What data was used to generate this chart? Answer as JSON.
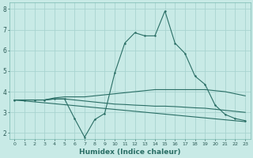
{
  "xlabel": "Humidex (Indice chaleur)",
  "background_color": "#c8eae6",
  "grid_color": "#a8d4d0",
  "line_color": "#2a6e65",
  "xlim": [
    -0.5,
    23.5
  ],
  "ylim": [
    1.7,
    8.3
  ],
  "yticks": [
    2,
    3,
    4,
    5,
    6,
    7,
    8
  ],
  "xticks": [
    0,
    1,
    2,
    3,
    4,
    5,
    6,
    7,
    8,
    9,
    10,
    11,
    12,
    13,
    14,
    15,
    16,
    17,
    18,
    19,
    20,
    21,
    22,
    23
  ],
  "lines": [
    {
      "x": [
        0,
        1,
        2,
        3,
        4,
        5,
        6,
        7,
        8,
        9,
        10,
        11,
        12,
        13,
        14,
        15,
        16,
        17,
        18,
        19,
        20,
        21,
        22,
        23
      ],
      "y": [
        3.6,
        3.6,
        3.6,
        3.6,
        3.65,
        3.65,
        2.7,
        1.8,
        2.65,
        2.95,
        4.9,
        6.35,
        6.85,
        6.7,
        6.7,
        7.9,
        6.35,
        5.85,
        4.75,
        4.35,
        3.35,
        2.9,
        2.7,
        2.6
      ],
      "markers": true
    },
    {
      "x": [
        0,
        1,
        2,
        3,
        4,
        5,
        6,
        7,
        8,
        9,
        10,
        11,
        12,
        13,
        14,
        15,
        16,
        17,
        18,
        19,
        20,
        21,
        22,
        23
      ],
      "y": [
        3.6,
        3.6,
        3.6,
        3.6,
        3.7,
        3.75,
        3.75,
        3.75,
        3.8,
        3.85,
        3.9,
        3.95,
        4.0,
        4.05,
        4.1,
        4.1,
        4.1,
        4.1,
        4.1,
        4.1,
        4.05,
        4.0,
        3.9,
        3.8
      ],
      "markers": false
    },
    {
      "x": [
        0,
        23
      ],
      "y": [
        3.6,
        2.55
      ],
      "markers": false
    },
    {
      "x": [
        0,
        1,
        2,
        3,
        4,
        5,
        6,
        7,
        8,
        9,
        10,
        11,
        12,
        13,
        14,
        15,
        16,
        17,
        18,
        19,
        20,
        21,
        22,
        23
      ],
      "y": [
        3.6,
        3.6,
        3.6,
        3.6,
        3.65,
        3.65,
        3.6,
        3.55,
        3.5,
        3.45,
        3.4,
        3.38,
        3.35,
        3.33,
        3.3,
        3.3,
        3.28,
        3.25,
        3.22,
        3.2,
        3.15,
        3.1,
        3.05,
        3.0
      ],
      "markers": false
    }
  ]
}
